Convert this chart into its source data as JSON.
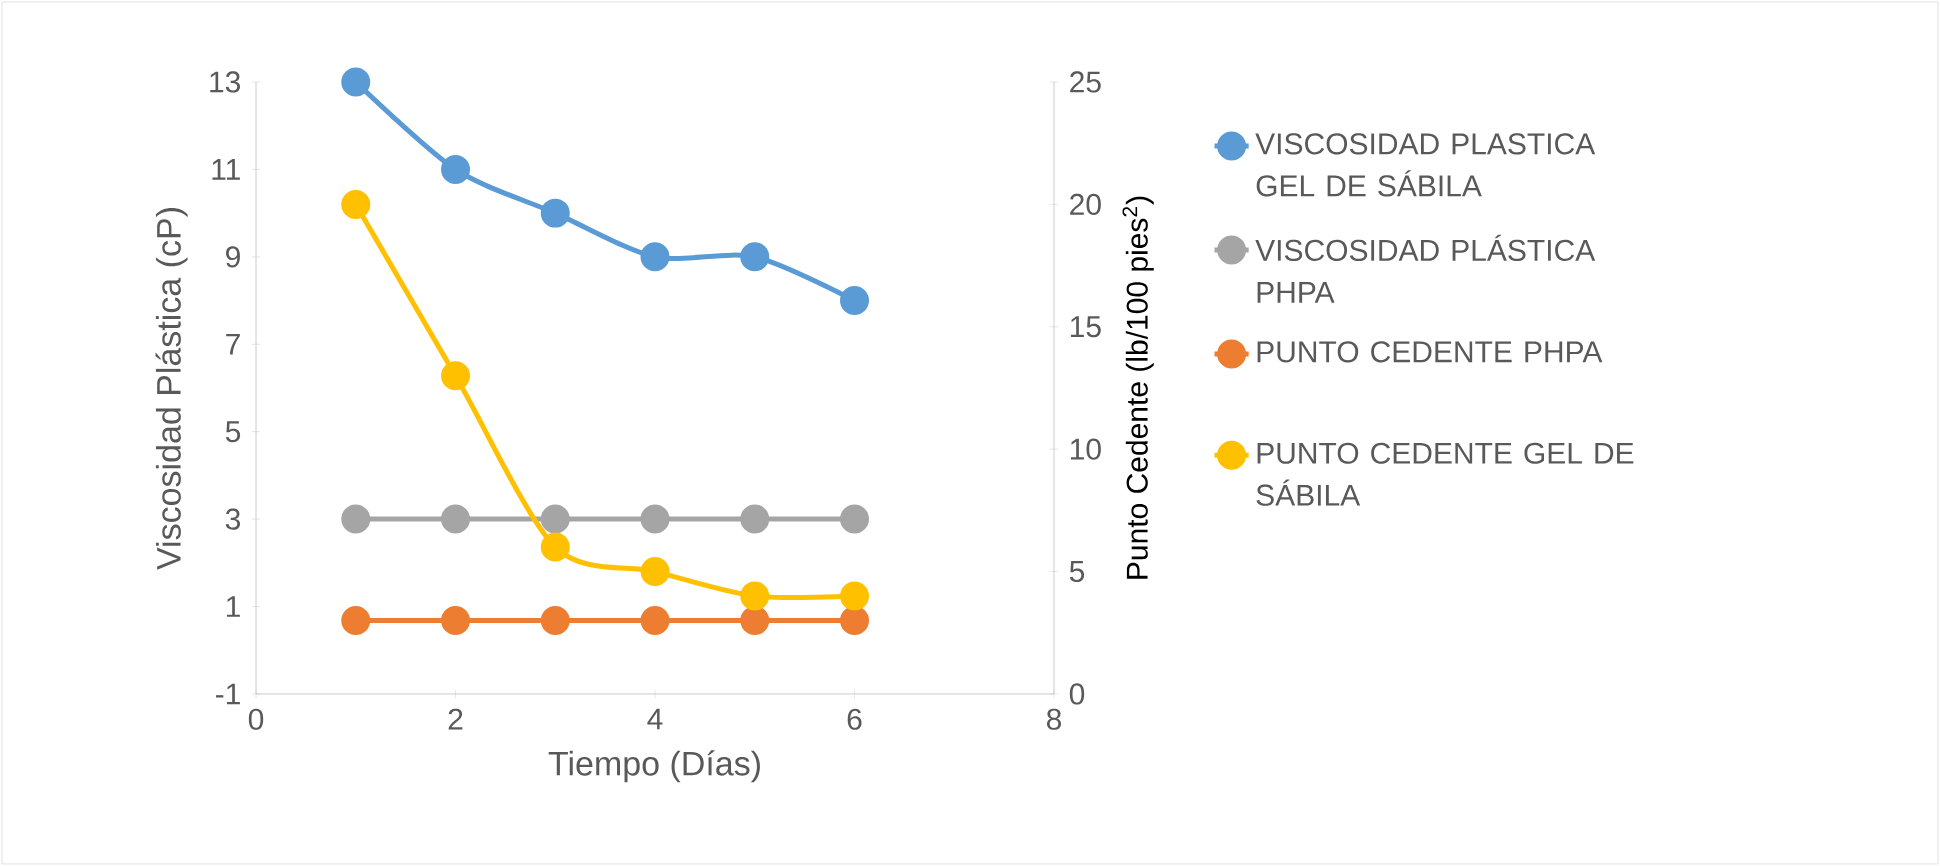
{
  "chart_data": {
    "type": "line",
    "xlabel": "Tiempo (Días)",
    "ylabel": "Viscosidad Plástica (cP)",
    "y2label": "Punto Cedente (lb/100 pies$^{2}$)",
    "x": [
      1,
      2,
      3,
      4,
      5,
      6
    ],
    "series": [
      {
        "name": "VISCOSIDAD PLASTICA GEL DE SÁBILA",
        "color": "#5b9bd5",
        "values": [
          13,
          11,
          10,
          9,
          9,
          8
        ]
      },
      {
        "name": "VISCOSIDAD PLÁSTICA PHPA",
        "color": "#a5a5a5",
        "values": [
          3,
          3,
          3,
          3,
          3,
          3
        ]
      },
      {
        "name": "PUNTO CEDENTE PHPA",
        "color": "#ed7d31",
        "axis": "y2",
        "values": [
          3,
          3,
          3,
          3,
          3,
          3
        ]
      },
      {
        "name": "PUNTO CEDENTE GEL DE SÁBILA",
        "color": "#ffc000",
        "axis": "y2",
        "values": [
          20,
          13,
          6,
          5,
          4,
          4
        ]
      }
    ],
    "xlim": [
      0,
      8
    ],
    "xticks": [
      0,
      2,
      4,
      6,
      8
    ],
    "ylim": [
      -1,
      13
    ],
    "yticks": [
      -1,
      1,
      3,
      5,
      7,
      9,
      11,
      13
    ],
    "y2lim": [
      0,
      25
    ],
    "y2ticks": [
      0,
      5,
      10,
      15,
      20,
      25
    ],
    "legend": "right",
    "marker": "circle",
    "line_style": "solid",
    "grid": false
  }
}
